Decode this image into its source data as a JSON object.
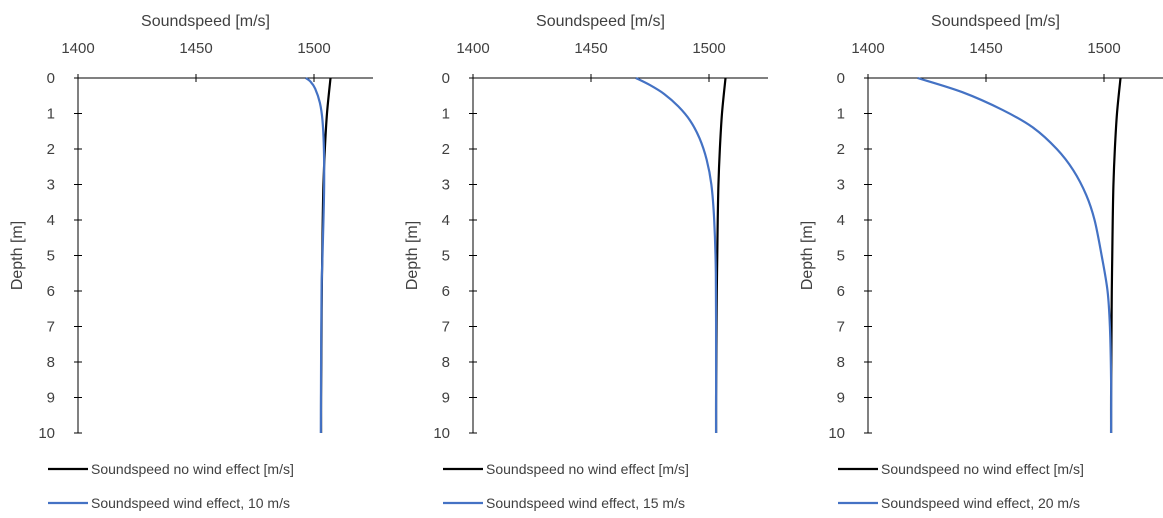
{
  "chart_data": [
    {
      "type": "line",
      "xlabel": "Soundspeed [m/s]",
      "ylabel": "Depth [m]",
      "xlim": [
        1400,
        1525
      ],
      "ylim": [
        0,
        10
      ],
      "x_ticks": [
        "1400",
        "1450",
        "1500"
      ],
      "y_ticks": [
        "0",
        "1",
        "2",
        "3",
        "4",
        "5",
        "6",
        "7",
        "8",
        "9",
        "10"
      ],
      "y_reversed": true,
      "x_axis_position": "top",
      "grid": false,
      "legend_position": "bottom",
      "series": [
        {
          "name": "Soundspeed no wind effect [m/s]",
          "color": "#000000",
          "x": [
            1507.0,
            1505.5,
            1504.6,
            1504.0,
            1503.7,
            1503.5,
            1503.3,
            1503.2,
            1503.1,
            1503.0,
            1503.0
          ],
          "y": [
            0,
            1,
            2,
            3,
            4,
            5,
            6,
            7,
            8,
            9,
            10
          ]
        },
        {
          "name": "Soundspeed wind effect, 10 m/s",
          "color": "#4472C4",
          "x": [
            1496.5,
            1498.5,
            1500.5,
            1502.5,
            1503.6,
            1504.2,
            1504.3,
            1504.0,
            1503.6,
            1503.2,
            1503.0,
            1502.9
          ],
          "y": [
            0,
            0.1,
            0.3,
            0.7,
            1.2,
            2,
            3,
            4,
            5,
            6,
            8,
            10
          ]
        }
      ]
    },
    {
      "type": "line",
      "xlabel": "Soundspeed [m/s]",
      "ylabel": "Depth [m]",
      "xlim": [
        1400,
        1525
      ],
      "ylim": [
        0,
        10
      ],
      "x_ticks": [
        "1400",
        "1450",
        "1500"
      ],
      "y_ticks": [
        "0",
        "1",
        "2",
        "3",
        "4",
        "5",
        "6",
        "7",
        "8",
        "9",
        "10"
      ],
      "y_reversed": true,
      "x_axis_position": "top",
      "grid": false,
      "legend_position": "bottom",
      "series": [
        {
          "name": "Soundspeed no wind effect [m/s]",
          "color": "#000000",
          "x": [
            1507.0,
            1505.5,
            1504.6,
            1504.0,
            1503.7,
            1503.5,
            1503.3,
            1503.2,
            1503.1,
            1503.0,
            1503.0
          ],
          "y": [
            0,
            1,
            2,
            3,
            4,
            5,
            6,
            7,
            8,
            9,
            10
          ]
        },
        {
          "name": "Soundspeed wind effect, 15 m/s",
          "color": "#4472C4",
          "x": [
            1469.0,
            1475.0,
            1481.0,
            1487.0,
            1492.0,
            1496.0,
            1499.0,
            1501.0,
            1502.2,
            1502.9,
            1503.0,
            1503.0
          ],
          "y": [
            0,
            0.2,
            0.45,
            0.8,
            1.2,
            1.7,
            2.3,
            3.0,
            4.0,
            5.5,
            8.0,
            10
          ]
        }
      ]
    },
    {
      "type": "line",
      "xlabel": "Soundspeed [m/s]",
      "ylabel": "Depth [m]",
      "xlim": [
        1400,
        1525
      ],
      "ylim": [
        0,
        10
      ],
      "x_ticks": [
        "1400",
        "1450",
        "1500"
      ],
      "y_ticks": [
        "0",
        "1",
        "2",
        "3",
        "4",
        "5",
        "6",
        "7",
        "8",
        "9",
        "10"
      ],
      "y_reversed": true,
      "x_axis_position": "top",
      "grid": false,
      "legend_position": "bottom",
      "series": [
        {
          "name": "Soundspeed no wind effect [m/s]",
          "color": "#000000",
          "x": [
            1507.0,
            1505.5,
            1504.6,
            1504.0,
            1503.7,
            1503.5,
            1503.3,
            1503.2,
            1503.1,
            1503.0,
            1503.0
          ],
          "y": [
            0,
            1,
            2,
            3,
            4,
            5,
            6,
            7,
            8,
            9,
            10
          ]
        },
        {
          "name": "Soundspeed wind effect, 20 m/s",
          "color": "#4472C4",
          "x": [
            1421.0,
            1440.0,
            1457.0,
            1470.0,
            1480.0,
            1487.0,
            1492.5,
            1496.0,
            1499.0,
            1501.5,
            1502.5,
            1503.0,
            1503.0
          ],
          "y": [
            0,
            0.4,
            0.9,
            1.4,
            2.0,
            2.6,
            3.3,
            4.0,
            5.0,
            6.0,
            7.0,
            8.5,
            10
          ]
        }
      ]
    }
  ]
}
